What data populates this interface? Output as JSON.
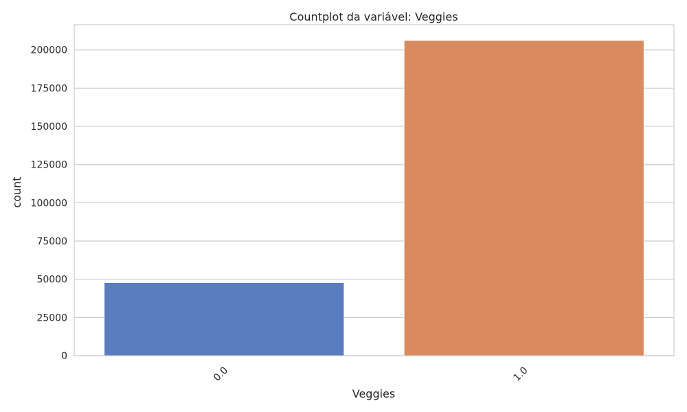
{
  "chart_data": {
    "type": "bar",
    "title": "Countplot da variável: Veggies",
    "xlabel": "Veggies",
    "ylabel": "count",
    "categories": [
      "0.0",
      "1.0"
    ],
    "values": [
      47839,
      206241
    ],
    "colors": [
      "#5a7dc0",
      "#d98a5e"
    ],
    "ylim": [
      0,
      216500
    ],
    "yticks": [
      0,
      25000,
      50000,
      75000,
      100000,
      125000,
      150000,
      175000,
      200000
    ],
    "ytick_labels": [
      "0",
      "25000",
      "50000",
      "75000",
      "100000",
      "125000",
      "150000",
      "175000",
      "200000"
    ],
    "grid": true,
    "legend": "none",
    "xtick_rotation_deg": 45
  }
}
